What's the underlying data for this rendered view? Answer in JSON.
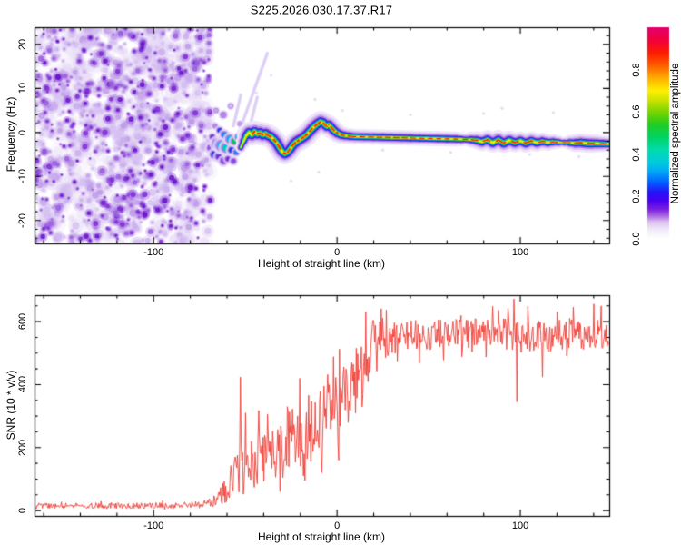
{
  "title": "S225.2026.030.17.37.R17",
  "chart_data": [
    {
      "type": "heatmap",
      "title": "S225.2026.030.17.37.R17",
      "xlabel": "Height of straight line (km)",
      "ylabel": "Frequency (Hz)",
      "xlim": [
        -165,
        148.5
      ],
      "ylim": [
        -25.2,
        23.9
      ],
      "xticks": [
        -100,
        0,
        100
      ],
      "yticks": [
        20,
        10,
        0,
        -10,
        -20
      ],
      "xtick_minor_step": 20,
      "ytick_minor_step": 2,
      "grid": false,
      "colorbar": {
        "label": "Normalized spectral amplitude",
        "ticks": [
          "0.0",
          "0.2",
          "0.4",
          "0.6",
          "0.8"
        ],
        "tick_values": [
          0.0,
          0.2,
          0.4,
          0.6,
          0.8
        ],
        "stops": [
          [
            0.0,
            "#ffffff"
          ],
          [
            0.04,
            "#f4edfb"
          ],
          [
            0.08,
            "#dcc2f0"
          ],
          [
            0.11,
            "#a864e0"
          ],
          [
            0.14,
            "#7a1fe0"
          ],
          [
            0.18,
            "#4a00f0"
          ],
          [
            0.22,
            "#2414f8"
          ],
          [
            0.27,
            "#0064ff"
          ],
          [
            0.32,
            "#00aaf4"
          ],
          [
            0.36,
            "#00cade"
          ],
          [
            0.42,
            "#00dcae"
          ],
          [
            0.48,
            "#00d464"
          ],
          [
            0.54,
            "#22cc22"
          ],
          [
            0.6,
            "#7ad400"
          ],
          [
            0.66,
            "#d2e400"
          ],
          [
            0.7,
            "#fff000"
          ],
          [
            0.76,
            "#ffae00"
          ],
          [
            0.82,
            "#ff5c00"
          ],
          [
            0.88,
            "#fc1c00"
          ],
          [
            0.94,
            "#f2003c"
          ],
          [
            1.0,
            "#e4006e"
          ]
        ]
      },
      "noise_region": {
        "km_min": -165,
        "km_max": -69,
        "seed": 1337,
        "layers": [
          {
            "count": 420,
            "rmin": 3.0,
            "rmax": 6.5,
            "colors": [
              "#ebe1f7",
              "#e3d5f5"
            ],
            "alpha": 0.55
          },
          {
            "count": 650,
            "rmin": 1.6,
            "rmax": 4.2,
            "colors": [
              "#d4bff1",
              "#bd99e9",
              "#c9abee"
            ],
            "alpha": 0.8
          },
          {
            "count": 360,
            "rmin": 1.0,
            "rmax": 3.2,
            "colors": [
              "#9a60de",
              "#7e2ed4",
              "#6a14cc"
            ],
            "alpha": 0.88
          }
        ]
      },
      "cluster_blobs": [
        [
          -69,
          -3.5,
          3,
          "#8a4ae0"
        ],
        [
          -68,
          -1,
          2.5,
          "#6a2fd8"
        ],
        [
          -67,
          -5,
          3.5,
          "#2337ee"
        ],
        [
          -66.5,
          1.5,
          2,
          "#b48ae6"
        ],
        [
          -65.5,
          -2.5,
          4,
          "#1b84f0"
        ],
        [
          -64.5,
          -5.5,
          3,
          "#6a2fd8"
        ],
        [
          -64,
          0.5,
          2.5,
          "#2337ee"
        ],
        [
          -63,
          -3,
          4.5,
          "#00b4e8"
        ],
        [
          -62,
          -6.5,
          3,
          "#8a4ae0"
        ],
        [
          -61.5,
          -0.5,
          3,
          "#1b84f0"
        ],
        [
          -60.5,
          -3.5,
          4,
          "#00c8c0"
        ],
        [
          -59.5,
          -6,
          2.5,
          "#6a2fd8"
        ],
        [
          -58.5,
          -1.5,
          3.5,
          "#00b4e8"
        ],
        [
          -57.5,
          -4,
          3,
          "#2337ee"
        ],
        [
          -56.5,
          -6.5,
          2.5,
          "#8a4ae0"
        ],
        [
          -56,
          -2,
          3,
          "#00cc44"
        ],
        [
          -55,
          -4.5,
          2.5,
          "#1b84f0"
        ],
        [
          -54,
          -1,
          2.5,
          "#00b4e8"
        ],
        [
          -66,
          5,
          2,
          "#c9a8ee"
        ],
        [
          -62,
          4,
          2.5,
          "#b48ae6"
        ],
        [
          -58,
          6,
          2,
          "#d5c0f2"
        ],
        [
          -53,
          2,
          1.8,
          "#c9a8ee"
        ]
      ],
      "streaks": [
        [
          -53.5,
          0,
          -38,
          18
        ],
        [
          -49,
          -1,
          -43.5,
          8
        ],
        [
          -56.5,
          1.5,
          -52.5,
          8.5
        ]
      ],
      "specks": [
        [
          -44,
          9
        ],
        [
          -36,
          13
        ],
        [
          -25,
          -11
        ],
        [
          -12,
          7.5
        ],
        [
          -10,
          -9
        ],
        [
          3,
          5
        ],
        [
          25,
          -4
        ],
        [
          40,
          4
        ],
        [
          62,
          -4.5
        ],
        [
          80,
          4.3
        ],
        [
          90,
          5.5
        ],
        [
          105,
          -5
        ],
        [
          118,
          4.5
        ],
        [
          132,
          -5.5
        ]
      ],
      "ridge": {
        "points": [
          [
            -52.5,
            -3.4,
            0.45
          ],
          [
            -51,
            -2,
            0.6
          ],
          [
            -49.5,
            -0.7,
            0.8
          ],
          [
            -48,
            0,
            0.95
          ],
          [
            -46.5,
            -0.5,
            1
          ],
          [
            -45,
            0.2,
            1
          ],
          [
            -43.5,
            -0.3,
            1
          ],
          [
            -42,
            -0.1,
            1
          ],
          [
            -40.5,
            -0.5,
            1
          ],
          [
            -39,
            -0.3,
            1
          ],
          [
            -37.5,
            -0.7,
            1
          ],
          [
            -36,
            -1,
            1
          ],
          [
            -34.5,
            -1.6,
            1
          ],
          [
            -33,
            -2.3,
            1
          ],
          [
            -31.5,
            -3.3,
            1
          ],
          [
            -30,
            -4.3,
            1
          ],
          [
            -28.5,
            -4.8,
            0.95
          ],
          [
            -27,
            -4.5,
            0.95
          ],
          [
            -25.5,
            -3.7,
            0.95
          ],
          [
            -24,
            -2.8,
            0.95
          ],
          [
            -22.5,
            -2.2,
            1
          ],
          [
            -21,
            -1.8,
            1
          ],
          [
            -19.5,
            -1.4,
            1
          ],
          [
            -18,
            -1,
            1
          ],
          [
            -16.5,
            -0.5,
            1
          ],
          [
            -15,
            0.2,
            1
          ],
          [
            -13.5,
            0.9,
            1
          ],
          [
            -12,
            1.5,
            1
          ],
          [
            -10.5,
            2,
            1
          ],
          [
            -9,
            2.4,
            1
          ],
          [
            -7.5,
            2.2,
            0.95
          ],
          [
            -6.5,
            1.7,
            0.9
          ],
          [
            -5.5,
            1.4,
            0.9
          ],
          [
            -4.5,
            1.7,
            0.9
          ],
          [
            -3.5,
            1.3,
            0.9
          ],
          [
            -2.5,
            0.8,
            0.9
          ],
          [
            -1.5,
            0.4,
            0.9
          ],
          [
            0,
            -0.1,
            0.85
          ],
          [
            2,
            -0.5,
            0.8
          ],
          [
            4,
            -0.7,
            0.75
          ],
          [
            7,
            -0.85,
            0.72
          ],
          [
            10,
            -0.95,
            0.7
          ],
          [
            15,
            -1,
            0.7
          ],
          [
            20,
            -1.05,
            0.7
          ],
          [
            25,
            -1.1,
            0.7
          ],
          [
            30,
            -1.15,
            0.7
          ],
          [
            35,
            -1.2,
            0.7
          ],
          [
            40,
            -1.25,
            0.7
          ],
          [
            45,
            -1.3,
            0.7
          ],
          [
            50,
            -1.35,
            0.7
          ],
          [
            55,
            -1.4,
            0.7
          ],
          [
            60,
            -1.45,
            0.7
          ],
          [
            65,
            -1.5,
            0.7
          ],
          [
            68,
            -1.55,
            0.62
          ],
          [
            70.5,
            -1.6,
            0.5
          ],
          [
            73,
            -1.62,
            0.68
          ],
          [
            76,
            -1.75,
            0.8
          ],
          [
            79,
            -2.1,
            0.85
          ],
          [
            82,
            -1.65,
            0.85
          ],
          [
            85,
            -2.3,
            0.9
          ],
          [
            88,
            -1.7,
            0.9
          ],
          [
            91,
            -2.4,
            0.9
          ],
          [
            94,
            -1.8,
            0.9
          ],
          [
            97,
            -2.3,
            0.85
          ],
          [
            100,
            -1.9,
            0.85
          ],
          [
            103,
            -2.4,
            0.85
          ],
          [
            106,
            -1.9,
            0.85
          ],
          [
            109,
            -2.3,
            0.8
          ],
          [
            112,
            -2,
            0.8
          ],
          [
            115,
            -2.25,
            0.75
          ],
          [
            118,
            -2.1,
            0.7
          ],
          [
            121,
            -2.2,
            0.55
          ],
          [
            124,
            -2.3,
            0.45
          ],
          [
            127,
            -2.3,
            0.6
          ],
          [
            130,
            -2.4,
            0.8
          ],
          [
            133,
            -2.3,
            0.85
          ],
          [
            136,
            -2.45,
            0.85
          ],
          [
            139,
            -2.5,
            0.85
          ],
          [
            142,
            -2.5,
            0.8
          ],
          [
            145,
            -2.55,
            0.75
          ],
          [
            148.5,
            -2.6,
            0.7
          ]
        ],
        "layers": [
          [
            "#efe6fa",
            24
          ],
          [
            "#d9c2f3",
            18
          ],
          [
            "#b07de4",
            13.5
          ],
          [
            "#5c1ad8",
            10
          ],
          [
            "#2432f2",
            8
          ],
          [
            "#00a6f2",
            6.3
          ],
          [
            "#00cc50",
            4.7
          ],
          [
            "#9bdc00",
            3.3
          ],
          [
            "#ffe800",
            2.3
          ]
        ],
        "core": {
          "color": "#ff2000",
          "width": 1.8,
          "dash": [
            6,
            5
          ],
          "start_km": -47
        }
      }
    },
    {
      "type": "line",
      "xlabel": "Height of straight line (km)",
      "ylabel": "SNR (10 * v/v)",
      "xlim": [
        -165,
        148.5
      ],
      "ylim": [
        -17,
        684
      ],
      "xticks": [
        -100,
        0,
        100
      ],
      "yticks": [
        0,
        200,
        400,
        600
      ],
      "xtick_minor_step": 20,
      "ytick_minor_step": 50,
      "grid": false,
      "line_color": "#ee3b33",
      "seed": 20260317,
      "step_km": 0.4,
      "mean_anchors": [
        [
          -165,
          15
        ],
        [
          -90,
          16
        ],
        [
          -72,
          20
        ],
        [
          -66,
          30
        ],
        [
          -62,
          55
        ],
        [
          -58,
          90
        ],
        [
          -54,
          120
        ],
        [
          -50,
          150
        ],
        [
          -46,
          145
        ],
        [
          -42,
          165
        ],
        [
          -38,
          160
        ],
        [
          -34,
          185
        ],
        [
          -30,
          215
        ],
        [
          -26,
          225
        ],
        [
          -22,
          245
        ],
        [
          -18,
          245
        ],
        [
          -14,
          255
        ],
        [
          -10,
          270
        ],
        [
          -6,
          295
        ],
        [
          -2,
          320
        ],
        [
          2,
          345
        ],
        [
          6,
          380
        ],
        [
          10,
          420
        ],
        [
          14,
          460
        ],
        [
          18,
          500
        ],
        [
          22,
          530
        ],
        [
          26,
          548
        ],
        [
          35,
          555
        ],
        [
          50,
          558
        ],
        [
          70,
          560
        ],
        [
          88,
          570
        ],
        [
          95,
          560
        ],
        [
          100,
          548
        ],
        [
          110,
          552
        ],
        [
          125,
          558
        ],
        [
          140,
          560
        ],
        [
          148.5,
          555
        ]
      ],
      "amp_anchors": [
        [
          -165,
          9
        ],
        [
          -72,
          10
        ],
        [
          -66,
          18
        ],
        [
          -62,
          35
        ],
        [
          -58,
          60
        ],
        [
          -54,
          75
        ],
        [
          -50,
          85
        ],
        [
          -44,
          75
        ],
        [
          -38,
          80
        ],
        [
          -32,
          90
        ],
        [
          -26,
          100
        ],
        [
          -20,
          110
        ],
        [
          -14,
          105
        ],
        [
          -8,
          110
        ],
        [
          -2,
          110
        ],
        [
          4,
          115
        ],
        [
          10,
          120
        ],
        [
          16,
          105
        ],
        [
          22,
          85
        ],
        [
          28,
          60
        ],
        [
          35,
          50
        ],
        [
          50,
          48
        ],
        [
          70,
          50
        ],
        [
          90,
          52
        ],
        [
          110,
          50
        ],
        [
          130,
          50
        ],
        [
          148.5,
          48
        ]
      ],
      "spikes": [
        [
          -52.6,
          424
        ],
        [
          -51.2,
          52
        ],
        [
          -49.8,
          310
        ],
        [
          -42.7,
          318
        ],
        [
          -37.9,
          306
        ],
        [
          -31,
          60
        ],
        [
          -27,
          330
        ],
        [
          -20.2,
          420
        ],
        [
          -17.5,
          95
        ],
        [
          -15.4,
          366
        ],
        [
          -8.2,
          120
        ],
        [
          -5.2,
          432
        ],
        [
          0.8,
          160
        ],
        [
          8.2,
          470
        ],
        [
          13.2,
          520
        ],
        [
          33,
          475
        ],
        [
          45,
          468
        ],
        [
          58,
          478
        ],
        [
          88,
          636
        ],
        [
          96.6,
          672
        ],
        [
          98.2,
          345
        ],
        [
          104,
          648
        ],
        [
          112,
          424
        ],
        [
          120,
          632
        ],
        [
          129,
          646
        ],
        [
          140,
          656
        ],
        [
          144,
          650
        ]
      ]
    }
  ]
}
